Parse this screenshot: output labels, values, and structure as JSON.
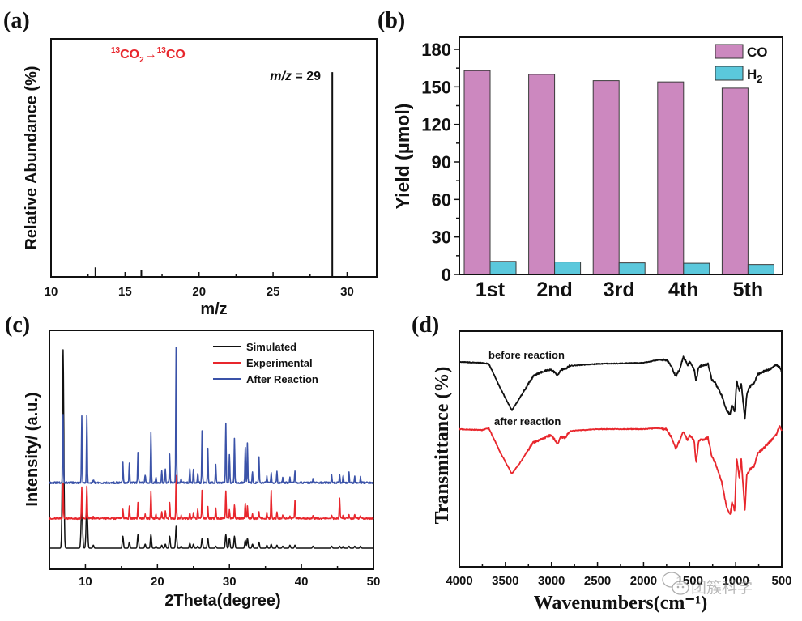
{
  "chart_data": [
    {
      "id": "a",
      "type": "bar",
      "panel_label": "(a)",
      "title": "",
      "xlabel": "m/z",
      "ylabel": "Relative Abundance (%)",
      "xlim": [
        10,
        32
      ],
      "ylim": [
        0,
        100
      ],
      "x_ticks": [
        10,
        15,
        20,
        25,
        30
      ],
      "x": [
        13,
        16.1,
        29
      ],
      "values": [
        4,
        3,
        86
      ],
      "annotation_reaction": {
        "pre": "13",
        "a": "CO",
        "sub": "2",
        "arrow": "→",
        "pre2": "13",
        "b": "CO"
      },
      "annotation_peak": {
        "italic": "m/z",
        "rest": " = 29"
      },
      "line_color": "#111111",
      "annotation_color": "#e8262c"
    },
    {
      "id": "b",
      "type": "bar",
      "panel_label": "(b)",
      "title": "",
      "xlabel": "",
      "ylabel": "Yield (μmol)",
      "ylim": [
        0,
        190
      ],
      "y_ticks": [
        0,
        30,
        60,
        90,
        120,
        150,
        180
      ],
      "categories": [
        "1st",
        "2nd",
        "3rd",
        "4th",
        "5th"
      ],
      "series": [
        {
          "name": "CO",
          "color": "#cc88bf",
          "values": [
            163,
            160,
            155,
            154,
            149
          ]
        },
        {
          "name": "H2",
          "color": "#5bc8dc",
          "values": [
            10.5,
            10,
            9.3,
            9,
            8
          ]
        }
      ],
      "legend": {
        "position": "top-right",
        "labels": [
          {
            "main": "CO",
            "sub": ""
          },
          {
            "main": "H",
            "sub": "2"
          }
        ]
      }
    },
    {
      "id": "c",
      "type": "line",
      "panel_label": "(c)",
      "title": "",
      "xlabel": "2Theta(degree)",
      "ylabel": "Intensity/ (a.u.)",
      "xlim": [
        5,
        50
      ],
      "x_ticks": [
        10,
        20,
        30,
        40,
        50
      ],
      "grid": false,
      "legend": {
        "position": "top-right"
      },
      "peaks_2theta": [
        6.9,
        9.5,
        10.2,
        11.1,
        15.2,
        16.1,
        17.3,
        18.3,
        19.1,
        19.8,
        20.6,
        21.1,
        21.7,
        22.6,
        23.3,
        24.5,
        25.0,
        25.6,
        26.2,
        27.0,
        28.1,
        29.5,
        30.0,
        30.7,
        32.2,
        32.5,
        33.2,
        34.1,
        35.2,
        35.8,
        36.6,
        37.4,
        38.4,
        39.1,
        41.6,
        44.2,
        45.3,
        45.8,
        46.6,
        47.4,
        48.2
      ],
      "series": [
        {
          "name": "Simulated",
          "color": "#111111",
          "offset": 0,
          "heights": [
            100,
            22,
            22,
            1.5,
            6,
            3,
            7,
            2,
            7,
            1,
            1.5,
            2,
            6,
            11,
            1,
            2.5,
            2,
            1,
            5,
            5,
            1,
            7,
            5,
            6,
            4,
            5,
            2,
            3,
            1.5,
            2,
            1.5,
            1,
            1.5,
            1.5,
            1,
            1,
            1,
            1,
            1,
            1,
            1
          ]
        },
        {
          "name": "Experimental",
          "color": "#e8262c",
          "offset": 15,
          "heights": [
            18,
            16,
            16,
            1,
            5,
            6,
            8,
            2,
            14,
            2,
            3,
            4,
            8,
            22,
            1.5,
            3,
            3,
            5,
            14,
            6,
            5,
            14,
            4,
            7,
            8,
            6,
            2,
            3,
            3,
            14,
            3,
            2,
            1.5,
            9,
            1.5,
            2,
            10,
            2,
            1.5,
            2,
            1.5
          ]
        },
        {
          "name": "After Reaction",
          "color": "#3a52a8",
          "offset": 33,
          "heights": [
            34,
            34,
            34,
            1.5,
            10,
            10,
            15,
            4,
            25,
            3,
            6,
            7,
            14,
            68,
            2,
            7,
            7,
            5,
            26,
            17,
            9,
            30,
            14,
            22,
            18,
            20,
            5,
            13,
            3,
            5,
            6,
            3,
            3,
            6,
            2,
            4,
            4,
            4,
            5,
            3,
            3
          ]
        }
      ]
    },
    {
      "id": "d",
      "type": "line",
      "panel_label": "(d)",
      "title": "",
      "xlabel": "Wavenumbers(cm⁻¹)",
      "ylabel": "Transmittance (%)",
      "xlim": [
        4000,
        500
      ],
      "x_ticks": [
        4000,
        3500,
        3000,
        2500,
        2000,
        1500,
        1000,
        500
      ],
      "grid": false,
      "series": [
        {
          "name": "before reaction",
          "label": "before reaction",
          "color": "#111111",
          "offset": 0,
          "points": [
            [
              4000,
              0
            ],
            [
              3750,
              1
            ],
            [
              3680,
              2
            ],
            [
              3550,
              28
            ],
            [
              3430,
              50
            ],
            [
              3350,
              38
            ],
            [
              3200,
              15
            ],
            [
              3100,
              10
            ],
            [
              3000,
              8
            ],
            [
              2930,
              14
            ],
            [
              2900,
              8
            ],
            [
              2850,
              7
            ],
            [
              2800,
              4
            ],
            [
              2500,
              2
            ],
            [
              2000,
              1
            ],
            [
              1850,
              -2
            ],
            [
              1750,
              -2
            ],
            [
              1700,
              4
            ],
            [
              1650,
              15
            ],
            [
              1600,
              6
            ],
            [
              1570,
              -5
            ],
            [
              1520,
              3
            ],
            [
              1500,
              0
            ],
            [
              1450,
              8
            ],
            [
              1430,
              20
            ],
            [
              1400,
              5
            ],
            [
              1300,
              2
            ],
            [
              1260,
              18
            ],
            [
              1220,
              22
            ],
            [
              1150,
              35
            ],
            [
              1100,
              50
            ],
            [
              1060,
              54
            ],
            [
              1040,
              44
            ],
            [
              1010,
              52
            ],
            [
              990,
              20
            ],
            [
              960,
              30
            ],
            [
              940,
              22
            ],
            [
              900,
              58
            ],
            [
              880,
              34
            ],
            [
              850,
              26
            ],
            [
              800,
              22
            ],
            [
              760,
              13
            ],
            [
              700,
              10
            ],
            [
              640,
              8
            ],
            [
              560,
              3
            ],
            [
              520,
              6
            ],
            [
              500,
              10
            ]
          ]
        },
        {
          "name": "after reaction",
          "label": "after reaction",
          "color": "#e8262c",
          "offset": 83,
          "points": [
            [
              4000,
              0
            ],
            [
              3750,
              1
            ],
            [
              3680,
              -1
            ],
            [
              3550,
              25
            ],
            [
              3430,
              46
            ],
            [
              3350,
              36
            ],
            [
              3200,
              14
            ],
            [
              3100,
              10
            ],
            [
              3000,
              6
            ],
            [
              2930,
              16
            ],
            [
              2900,
              8
            ],
            [
              2850,
              9
            ],
            [
              2800,
              2
            ],
            [
              2500,
              0
            ],
            [
              2000,
              0
            ],
            [
              1850,
              -1
            ],
            [
              1750,
              0
            ],
            [
              1700,
              8
            ],
            [
              1650,
              20
            ],
            [
              1600,
              10
            ],
            [
              1570,
              2
            ],
            [
              1520,
              12
            ],
            [
              1500,
              6
            ],
            [
              1450,
              12
            ],
            [
              1430,
              35
            ],
            [
              1400,
              12
            ],
            [
              1300,
              9
            ],
            [
              1260,
              28
            ],
            [
              1220,
              35
            ],
            [
              1150,
              55
            ],
            [
              1100,
              80
            ],
            [
              1060,
              88
            ],
            [
              1040,
              75
            ],
            [
              1010,
              84
            ],
            [
              990,
              30
            ],
            [
              960,
              50
            ],
            [
              940,
              30
            ],
            [
              900,
              84
            ],
            [
              880,
              48
            ],
            [
              850,
              42
            ],
            [
              800,
              38
            ],
            [
              760,
              25
            ],
            [
              700,
              20
            ],
            [
              640,
              14
            ],
            [
              560,
              6
            ],
            [
              520,
              -4
            ],
            [
              500,
              2
            ]
          ]
        }
      ]
    }
  ],
  "watermark": {
    "text": "团簇科学",
    "icon": "wechat-icon"
  }
}
